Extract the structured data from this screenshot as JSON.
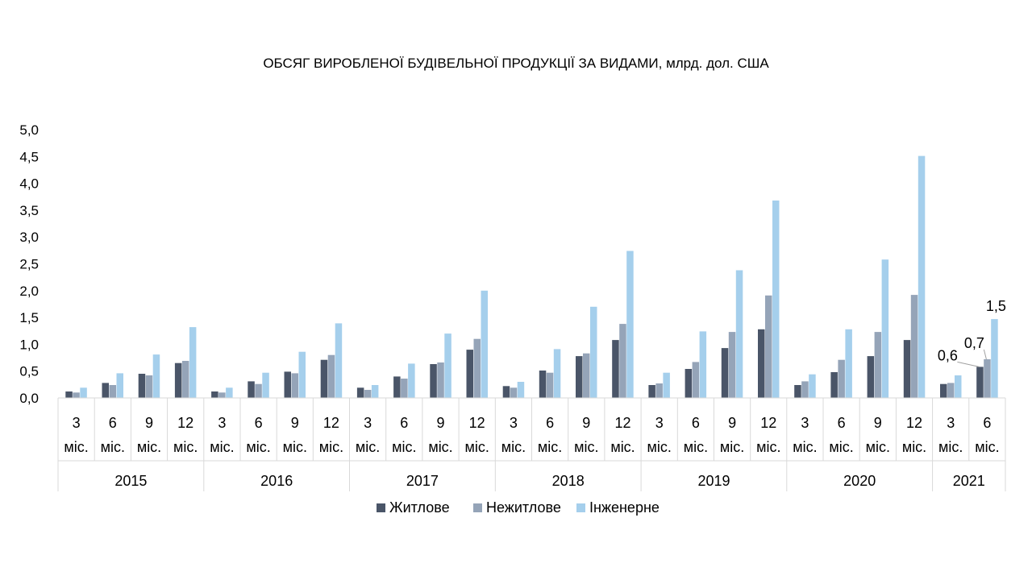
{
  "chart_data": {
    "type": "bar",
    "title": "ОБСЯГ ВИРОБЛЕНОЇ БУДІВЕЛЬНОЇ ПРОДУКЦІЇ ЗА ВИДАМИ, млрд. дол. США",
    "xlabel": "",
    "ylabel": "",
    "ylim": [
      0,
      5
    ],
    "yticks": [
      "0,0",
      "0,5",
      "1,0",
      "1,5",
      "2,0",
      "2,5",
      "3,0",
      "3,5",
      "4,0",
      "4,5",
      "5,0"
    ],
    "categories": [
      {
        "year": "2015",
        "period": "3",
        "unit": "міс."
      },
      {
        "year": "2015",
        "period": "6",
        "unit": "міс."
      },
      {
        "year": "2015",
        "period": "9",
        "unit": "міс."
      },
      {
        "year": "2015",
        "period": "12",
        "unit": "міс."
      },
      {
        "year": "2016",
        "period": "3",
        "unit": "міс."
      },
      {
        "year": "2016",
        "period": "6",
        "unit": "міс."
      },
      {
        "year": "2016",
        "period": "9",
        "unit": "міс."
      },
      {
        "year": "2016",
        "period": "12",
        "unit": "міс."
      },
      {
        "year": "2017",
        "period": "3",
        "unit": "міс."
      },
      {
        "year": "2017",
        "period": "6",
        "unit": "міс."
      },
      {
        "year": "2017",
        "period": "9",
        "unit": "міс."
      },
      {
        "year": "2017",
        "period": "12",
        "unit": "міс."
      },
      {
        "year": "2018",
        "period": "3",
        "unit": "міс."
      },
      {
        "year": "2018",
        "period": "6",
        "unit": "міс."
      },
      {
        "year": "2018",
        "period": "9",
        "unit": "міс."
      },
      {
        "year": "2018",
        "period": "12",
        "unit": "міс."
      },
      {
        "year": "2019",
        "period": "3",
        "unit": "міс."
      },
      {
        "year": "2019",
        "period": "6",
        "unit": "міс."
      },
      {
        "year": "2019",
        "period": "9",
        "unit": "міс."
      },
      {
        "year": "2019",
        "period": "12",
        "unit": "міс."
      },
      {
        "year": "2020",
        "period": "3",
        "unit": "міс."
      },
      {
        "year": "2020",
        "period": "6",
        "unit": "міс."
      },
      {
        "year": "2020",
        "period": "9",
        "unit": "міс."
      },
      {
        "year": "2020",
        "period": "12",
        "unit": "міс."
      },
      {
        "year": "2021",
        "period": "3",
        "unit": "міс."
      },
      {
        "year": "2021",
        "period": "6",
        "unit": "міс."
      }
    ],
    "years": [
      "2015",
      "2016",
      "2017",
      "2018",
      "2019",
      "2020",
      "2021"
    ],
    "series": [
      {
        "name": "Житлове",
        "color": "#4a5568",
        "values": [
          0.12,
          0.28,
          0.45,
          0.65,
          0.12,
          0.31,
          0.49,
          0.71,
          0.19,
          0.4,
          0.63,
          0.9,
          0.22,
          0.51,
          0.78,
          1.08,
          0.24,
          0.54,
          0.93,
          1.28,
          0.24,
          0.48,
          0.78,
          1.08,
          0.26,
          0.58
        ]
      },
      {
        "name": "Нежитлове",
        "color": "#95a4b8",
        "values": [
          0.1,
          0.24,
          0.42,
          0.69,
          0.1,
          0.26,
          0.46,
          0.8,
          0.15,
          0.36,
          0.66,
          1.1,
          0.19,
          0.47,
          0.83,
          1.38,
          0.27,
          0.67,
          1.23,
          1.91,
          0.31,
          0.71,
          1.23,
          1.92,
          0.28,
          0.72
        ]
      },
      {
        "name": "Інженерне",
        "color": "#a5cfec",
        "values": [
          0.19,
          0.46,
          0.81,
          1.32,
          0.19,
          0.47,
          0.86,
          1.39,
          0.24,
          0.64,
          1.2,
          2.0,
          0.3,
          0.91,
          1.7,
          2.74,
          0.47,
          1.24,
          2.38,
          3.68,
          0.44,
          1.28,
          2.58,
          4.51,
          0.42,
          1.47
        ]
      }
    ],
    "data_labels": [
      {
        "series": "Житлове",
        "category_index": 25,
        "text": "0,6"
      },
      {
        "series": "Нежитлове",
        "category_index": 25,
        "text": "0,7"
      },
      {
        "series": "Інженерне",
        "category_index": 25,
        "text": "1,5"
      }
    ],
    "legend_position": "bottom",
    "grid": false
  }
}
